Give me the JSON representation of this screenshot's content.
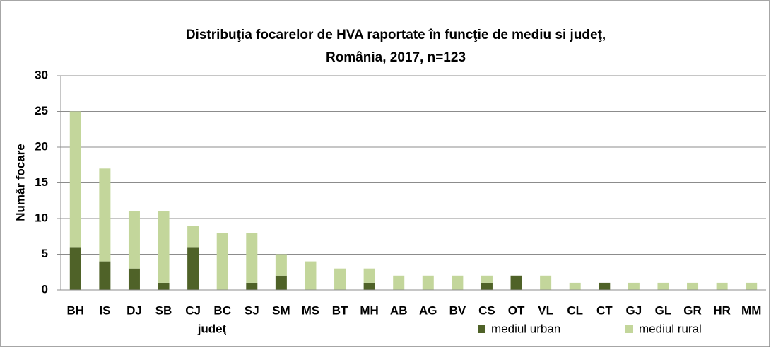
{
  "chart_data": {
    "type": "stacked_bar",
    "title": [
      "Distribuţia focarelor de HVA  raportate în funcţie de mediu si judeţ,",
      "România, 2017, n=123"
    ],
    "x_label": "judeţ",
    "y_label": "Număr focare",
    "categories": [
      "BH",
      "IS",
      "DJ",
      "SB",
      "CJ",
      "BC",
      "SJ",
      "SM",
      "MS",
      "BT",
      "MH",
      "AB",
      "AG",
      "BV",
      "CS",
      "OT",
      "VL",
      "CL",
      "CT",
      "GJ",
      "GL",
      "GR",
      "HR",
      "MM"
    ],
    "series": [
      {
        "name": "mediul urban",
        "color": "#4f6228",
        "values": [
          6,
          4,
          3,
          1,
          6,
          0,
          1,
          2,
          0,
          0,
          1,
          0,
          0,
          0,
          1,
          2,
          0,
          0,
          1,
          0,
          0,
          0,
          0,
          0
        ]
      },
      {
        "name": "mediul rural",
        "color": "#c3d69b",
        "values": [
          19,
          13,
          8,
          10,
          3,
          8,
          7,
          3,
          4,
          3,
          2,
          2,
          2,
          2,
          1,
          0,
          2,
          1,
          0,
          1,
          1,
          1,
          1,
          1
        ]
      }
    ],
    "ylim": [
      0,
      30
    ],
    "yticks": [
      0,
      5,
      10,
      15,
      20,
      25,
      30
    ],
    "grid": true,
    "legend": "bottom-right"
  }
}
